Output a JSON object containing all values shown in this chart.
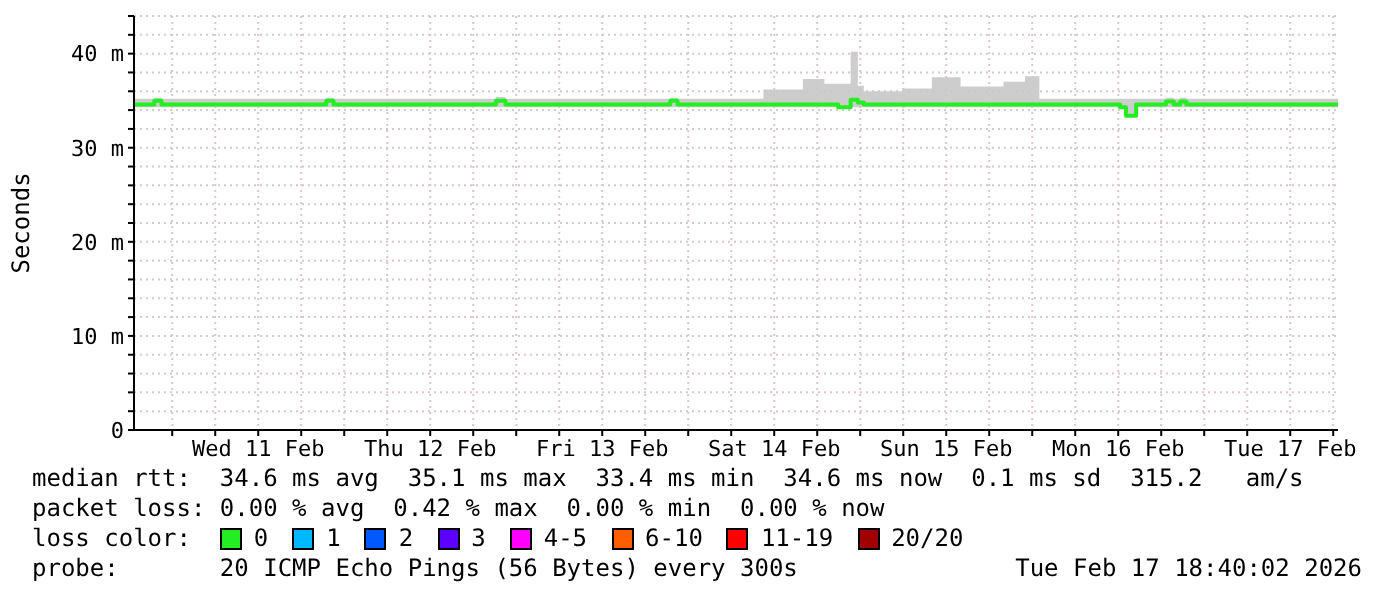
{
  "chart_data": {
    "type": "step",
    "ylabel": "Seconds",
    "legend_title": "loss color:",
    "legend": "bottom",
    "grid": true,
    "marker": "none",
    "xlim": [
      "2026-02-10T18:40",
      "2026-02-17T18:40"
    ],
    "xticks": [
      {
        "value": "2026-02-11T00:00",
        "label": null
      },
      {
        "value": "2026-02-11T06:00",
        "label": null
      },
      {
        "value": "2026-02-11T12:00",
        "label": "Wed 11 Feb"
      },
      {
        "value": "2026-02-11T18:00",
        "label": null
      },
      {
        "value": "2026-02-12T00:00",
        "label": null
      },
      {
        "value": "2026-02-12T06:00",
        "label": null
      },
      {
        "value": "2026-02-12T12:00",
        "label": "Thu 12 Feb"
      },
      {
        "value": "2026-02-12T18:00",
        "label": null
      },
      {
        "value": "2026-02-13T00:00",
        "label": null
      },
      {
        "value": "2026-02-13T06:00",
        "label": null
      },
      {
        "value": "2026-02-13T12:00",
        "label": "Fri 13 Feb"
      },
      {
        "value": "2026-02-13T18:00",
        "label": null
      },
      {
        "value": "2026-02-14T00:00",
        "label": null
      },
      {
        "value": "2026-02-14T06:00",
        "label": null
      },
      {
        "value": "2026-02-14T12:00",
        "label": "Sat 14 Feb"
      },
      {
        "value": "2026-02-14T18:00",
        "label": null
      },
      {
        "value": "2026-02-15T00:00",
        "label": null
      },
      {
        "value": "2026-02-15T06:00",
        "label": null
      },
      {
        "value": "2026-02-15T12:00",
        "label": "Sun 15 Feb"
      },
      {
        "value": "2026-02-15T18:00",
        "label": null
      },
      {
        "value": "2026-02-16T00:00",
        "label": null
      },
      {
        "value": "2026-02-16T06:00",
        "label": null
      },
      {
        "value": "2026-02-16T12:00",
        "label": "Mon 16 Feb"
      },
      {
        "value": "2026-02-16T18:00",
        "label": null
      },
      {
        "value": "2026-02-17T00:00",
        "label": null
      },
      {
        "value": "2026-02-17T06:00",
        "label": null
      },
      {
        "value": "2026-02-17T12:00",
        "label": "Tue 17 Feb"
      },
      {
        "value": "2026-02-17T18:00",
        "label": null
      }
    ],
    "ylim": [
      0,
      44
    ],
    "yticks": [
      {
        "value": 0,
        "label": "0"
      },
      {
        "value": 2,
        "label": null
      },
      {
        "value": 4,
        "label": null
      },
      {
        "value": 6,
        "label": null
      },
      {
        "value": 8,
        "label": null
      },
      {
        "value": 10,
        "label": "10 m"
      },
      {
        "value": 12,
        "label": null
      },
      {
        "value": 14,
        "label": null
      },
      {
        "value": 16,
        "label": null
      },
      {
        "value": 18,
        "label": null
      },
      {
        "value": 20,
        "label": "20 m"
      },
      {
        "value": 22,
        "label": null
      },
      {
        "value": 24,
        "label": null
      },
      {
        "value": 26,
        "label": null
      },
      {
        "value": 28,
        "label": null
      },
      {
        "value": 30,
        "label": "30 m"
      },
      {
        "value": 32,
        "label": null
      },
      {
        "value": 34,
        "label": null
      },
      {
        "value": 36,
        "label": null
      },
      {
        "value": 38,
        "label": null
      },
      {
        "value": 40,
        "label": "40 m"
      },
      {
        "value": 42,
        "label": null
      },
      {
        "value": 44,
        "label": null
      }
    ],
    "x": [
      "2026-02-10T18:40",
      "2026-02-10T21:30",
      "2026-02-10T22:30",
      "2026-02-11T21:30",
      "2026-02-11T22:30",
      "2026-02-12T21:10",
      "2026-02-12T22:30",
      "2026-02-13T21:30",
      "2026-02-13T22:30",
      "2026-02-14T10:30",
      "2026-02-14T16:00",
      "2026-02-14T19:00",
      "2026-02-14T20:55",
      "2026-02-14T22:40",
      "2026-02-14T23:40",
      "2026-02-15T00:30",
      "2026-02-15T06:00",
      "2026-02-15T10:00",
      "2026-02-15T14:00",
      "2026-02-15T20:00",
      "2026-02-15T23:00",
      "2026-02-16T01:00",
      "2026-02-16T12:15",
      "2026-02-16T12:40",
      "2026-02-16T13:05",
      "2026-02-16T14:30",
      "2026-02-16T18:40",
      "2026-02-16T19:45",
      "2026-02-16T20:40",
      "2026-02-16T21:30",
      "2026-02-17T18:40"
    ],
    "series": [
      {
        "name": "0",
        "color": "#22ee22",
        "values": [
          34.6,
          35.0,
          34.6,
          35.0,
          34.6,
          35.0,
          34.6,
          35.0,
          34.6,
          34.6,
          34.6,
          34.6,
          34.3,
          35.1,
          34.8,
          34.6,
          34.6,
          34.6,
          34.6,
          34.6,
          34.6,
          34.6,
          34.3,
          34.3,
          33.4,
          34.6,
          34.9,
          34.6,
          34.9,
          34.6,
          34.6
        ],
        "lower": [
          34.3,
          34.3,
          34.3,
          34.3,
          34.3,
          34.3,
          34.3,
          34.3,
          34.3,
          34.3,
          34.3,
          34.3,
          34.2,
          34.3,
          34.3,
          34.3,
          34.3,
          34.3,
          34.3,
          34.3,
          34.3,
          34.3,
          34.2,
          34.2,
          33.3,
          34.3,
          34.3,
          34.3,
          34.3,
          34.3,
          34.3
        ],
        "upper": [
          35.2,
          35.3,
          35.2,
          35.3,
          35.2,
          35.4,
          35.2,
          35.3,
          35.2,
          36.2,
          37.3,
          36.8,
          36.8,
          40.2,
          36.6,
          36.0,
          36.3,
          37.5,
          36.5,
          37.0,
          37.6,
          35.2,
          35.2,
          35.2,
          35.2,
          35.2,
          35.3,
          35.2,
          35.3,
          35.2,
          35.2
        ]
      },
      {
        "name": "1",
        "color": "#00b8ff",
        "values": [
          null,
          null,
          null,
          null,
          null,
          null,
          null,
          null,
          null,
          null,
          null,
          null,
          null,
          null,
          null,
          null,
          null,
          null,
          null,
          null,
          null,
          null,
          null,
          null,
          null,
          null,
          null,
          null,
          null,
          null,
          null
        ]
      },
      {
        "name": "2",
        "color": "#0059ff",
        "values": [
          null,
          null,
          null,
          null,
          null,
          null,
          null,
          null,
          null,
          null,
          null,
          null,
          null,
          null,
          null,
          null,
          null,
          null,
          null,
          null,
          null,
          null,
          null,
          null,
          null,
          null,
          null,
          null,
          null,
          null,
          null
        ]
      },
      {
        "name": "3",
        "color": "#5e00ff",
        "values": [
          null,
          null,
          null,
          null,
          null,
          null,
          null,
          null,
          null,
          null,
          null,
          null,
          null,
          null,
          null,
          null,
          null,
          null,
          null,
          null,
          null,
          null,
          null,
          null,
          null,
          null,
          null,
          null,
          null,
          null,
          null
        ]
      },
      {
        "name": "4-5",
        "color": "#ff00ff",
        "values": [
          null,
          null,
          null,
          null,
          null,
          null,
          null,
          null,
          null,
          null,
          null,
          null,
          null,
          null,
          null,
          null,
          null,
          null,
          null,
          null,
          null,
          null,
          null,
          null,
          null,
          null,
          null,
          null,
          null,
          null,
          null
        ]
      },
      {
        "name": "6-10",
        "color": "#ff5e00",
        "values": [
          null,
          null,
          null,
          null,
          null,
          null,
          null,
          null,
          null,
          null,
          null,
          null,
          null,
          null,
          null,
          null,
          null,
          null,
          null,
          null,
          null,
          null,
          null,
          null,
          null,
          null,
          null,
          null,
          null,
          null,
          null
        ]
      },
      {
        "name": "11-19",
        "color": "#ff0000",
        "values": [
          null,
          null,
          null,
          null,
          null,
          null,
          null,
          null,
          null,
          null,
          null,
          null,
          null,
          null,
          null,
          null,
          null,
          null,
          null,
          null,
          null,
          null,
          null,
          null,
          null,
          null,
          null,
          null,
          null,
          null,
          null
        ]
      },
      {
        "name": "20/20",
        "color": "#a10000",
        "values": [
          null,
          null,
          null,
          null,
          null,
          null,
          null,
          null,
          null,
          null,
          null,
          null,
          null,
          null,
          null,
          null,
          null,
          null,
          null,
          null,
          null,
          null,
          null,
          null,
          null,
          null,
          null,
          null,
          null,
          null,
          null
        ]
      }
    ],
    "annotations": [
      "median rtt:  34.6 ms avg  35.1 ms max  33.4 ms min  34.6 ms now  0.1 ms sd  315.2   am/s",
      "packet loss: 0.00 % avg  0.42 % max  0.00 % min  0.00 % now",
      "probe:       20 ICMP Echo Pings (56 Bytes) every 300s",
      "Tue Feb 17 18:40:02 2026"
    ]
  }
}
